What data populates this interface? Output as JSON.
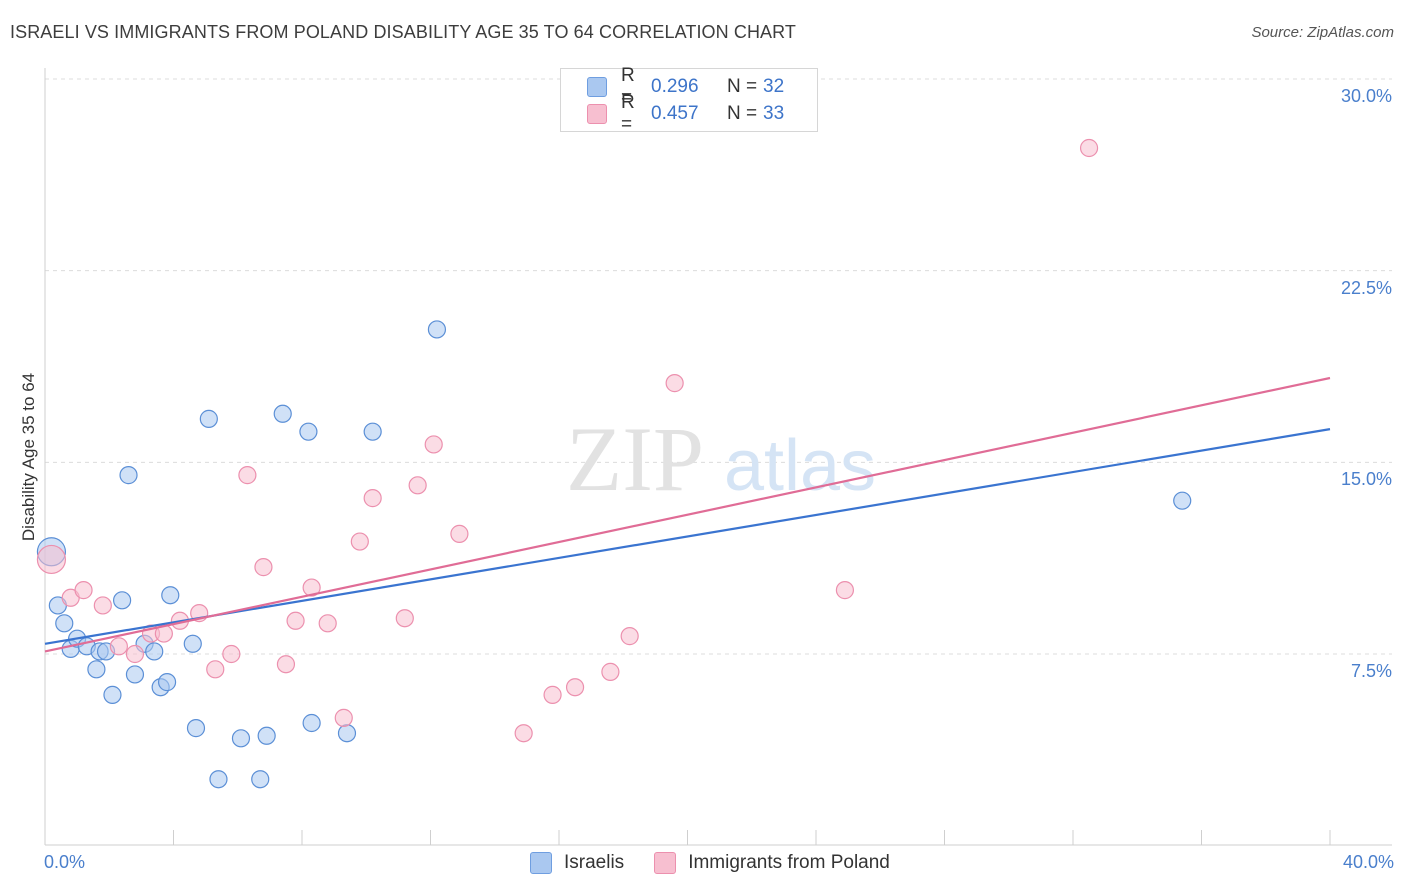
{
  "header": {
    "title": "ISRAELI VS IMMIGRANTS FROM POLAND DISABILITY AGE 35 TO 64 CORRELATION CHART",
    "source": "Source: ZipAtlas.com"
  },
  "watermark": {
    "zip": "ZIP",
    "atlas": "atlas"
  },
  "legend": {
    "rows": [
      {
        "r_label": "R =",
        "r_value": "0.296",
        "n_label": "N =",
        "n_value": "32",
        "color": "#aac8f0"
      },
      {
        "r_label": "R =",
        "r_value": "0.457",
        "n_label": "N =",
        "n_value": "33",
        "color": "#f7bfd0"
      }
    ]
  },
  "bottom_legend": [
    {
      "label": "Israelis",
      "color": "#aac8f0"
    },
    {
      "label": "Immigrants from Poland",
      "color": "#f7bfd0"
    }
  ],
  "axis": {
    "ylabel": "Disability Age 35 to 64",
    "yticks": [
      "30.0%",
      "22.5%",
      "15.0%",
      "7.5%"
    ],
    "xmin_label": "0.0%",
    "xmax_label": "40.0%"
  },
  "chart_data": {
    "type": "scatter",
    "title": "ISRAELI VS IMMIGRANTS FROM POLAND DISABILITY AGE 35 TO 64 CORRELATION CHART",
    "xlabel": "",
    "ylabel": "Disability Age 35 to 64",
    "xlim": [
      0,
      40
    ],
    "ylim": [
      0,
      31
    ],
    "grid": true,
    "legend_placement": "top-center",
    "series": [
      {
        "name": "Israelis",
        "color": "#5b8fd6",
        "fill": "#aac8f0",
        "trend": {
          "x0": 0,
          "y0": 7.9,
          "x1": 40,
          "y1": 16.3,
          "color": "#3a74d0"
        },
        "points": [
          [
            0.2,
            11.5
          ],
          [
            0.4,
            9.4
          ],
          [
            0.6,
            8.7
          ],
          [
            0.8,
            7.7
          ],
          [
            1.0,
            8.1
          ],
          [
            1.3,
            7.8
          ],
          [
            1.6,
            6.9
          ],
          [
            1.7,
            7.6
          ],
          [
            1.9,
            7.6
          ],
          [
            2.1,
            5.9
          ],
          [
            2.4,
            9.6
          ],
          [
            2.6,
            14.5
          ],
          [
            2.8,
            6.7
          ],
          [
            3.1,
            7.9
          ],
          [
            3.4,
            7.6
          ],
          [
            3.6,
            6.2
          ],
          [
            3.8,
            6.4
          ],
          [
            3.9,
            9.8
          ],
          [
            4.6,
            7.9
          ],
          [
            4.7,
            4.6
          ],
          [
            5.1,
            16.7
          ],
          [
            5.4,
            2.6
          ],
          [
            6.1,
            4.2
          ],
          [
            6.7,
            2.6
          ],
          [
            6.9,
            4.3
          ],
          [
            7.4,
            16.9
          ],
          [
            8.2,
            16.2
          ],
          [
            8.3,
            4.8
          ],
          [
            9.4,
            4.4
          ],
          [
            10.2,
            16.2
          ],
          [
            12.2,
            20.2
          ],
          [
            35.4,
            13.5
          ]
        ]
      },
      {
        "name": "Immigrants from Poland",
        "color": "#ec90ae",
        "fill": "#f7bfd0",
        "trend": {
          "x0": 0,
          "y0": 7.6,
          "x1": 40,
          "y1": 18.3,
          "color": "#e06c96"
        },
        "points": [
          [
            0.2,
            11.2
          ],
          [
            0.8,
            9.7
          ],
          [
            1.2,
            10.0
          ],
          [
            1.8,
            9.4
          ],
          [
            2.3,
            7.8
          ],
          [
            2.8,
            7.5
          ],
          [
            3.3,
            8.3
          ],
          [
            3.7,
            8.3
          ],
          [
            4.2,
            8.8
          ],
          [
            4.8,
            9.1
          ],
          [
            5.3,
            6.9
          ],
          [
            5.8,
            7.5
          ],
          [
            6.3,
            14.5
          ],
          [
            6.8,
            10.9
          ],
          [
            7.5,
            7.1
          ],
          [
            7.8,
            8.8
          ],
          [
            8.3,
            10.1
          ],
          [
            8.8,
            8.7
          ],
          [
            9.3,
            5.0
          ],
          [
            9.8,
            11.9
          ],
          [
            10.2,
            13.6
          ],
          [
            11.2,
            8.9
          ],
          [
            11.6,
            14.1
          ],
          [
            12.1,
            15.7
          ],
          [
            12.9,
            12.2
          ],
          [
            14.9,
            4.4
          ],
          [
            15.8,
            5.9
          ],
          [
            16.5,
            6.2
          ],
          [
            17.6,
            6.8
          ],
          [
            18.2,
            8.2
          ],
          [
            19.6,
            18.1
          ],
          [
            24.9,
            10.0
          ],
          [
            32.5,
            27.3
          ]
        ]
      }
    ]
  }
}
